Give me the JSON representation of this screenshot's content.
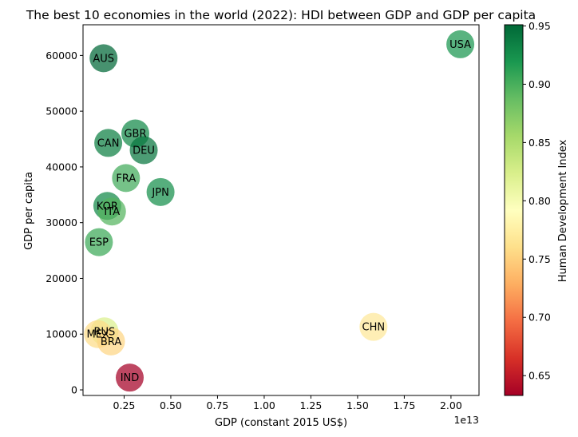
{
  "chart_data": {
    "type": "scatter",
    "title": "The best 10 economies in the world (2022): HDI between GDP and GDP per capita",
    "xlabel": "GDP (constant 2015 US$)",
    "ylabel": "GDP per capita",
    "x_offset_label": "1e13",
    "x_scale": 10000000000000.0,
    "xlim": [
      0.03,
      2.15
    ],
    "ylim": [
      -1000,
      65500
    ],
    "x_ticks": [
      0.25,
      0.5,
      0.75,
      1.0,
      1.25,
      1.5,
      1.75,
      2.0
    ],
    "x_tick_labels": [
      "0.25",
      "0.50",
      "0.75",
      "1.00",
      "1.25",
      "1.50",
      "1.75",
      "2.00"
    ],
    "y_ticks": [
      0,
      10000,
      20000,
      30000,
      40000,
      50000,
      60000
    ],
    "y_tick_labels": [
      "0",
      "10000",
      "20000",
      "30000",
      "40000",
      "50000",
      "60000"
    ],
    "colorbar": {
      "label": "Human Development Index",
      "colormap": "RdYlGn",
      "range": [
        0.633,
        0.951
      ],
      "ticks": [
        0.65,
        0.7,
        0.75,
        0.8,
        0.85,
        0.9,
        0.95
      ],
      "tick_labels": [
        "0.65",
        "0.70",
        "0.75",
        "0.80",
        "0.85",
        "0.90",
        "0.95"
      ]
    },
    "grid": false,
    "points": [
      {
        "label": "USA",
        "x": 2.05,
        "y": 62000,
        "hdi": 0.921
      },
      {
        "label": "AUS",
        "x": 0.14,
        "y": 59500,
        "hdi": 0.951
      },
      {
        "label": "GBR",
        "x": 0.31,
        "y": 46000,
        "hdi": 0.929
      },
      {
        "label": "CAN",
        "x": 0.165,
        "y": 44300,
        "hdi": 0.936
      },
      {
        "label": "DEU",
        "x": 0.355,
        "y": 43000,
        "hdi": 0.942
      },
      {
        "label": "FRA",
        "x": 0.26,
        "y": 38000,
        "hdi": 0.903
      },
      {
        "label": "JPN",
        "x": 0.445,
        "y": 35500,
        "hdi": 0.925
      },
      {
        "label": "KOR",
        "x": 0.16,
        "y": 33000,
        "hdi": 0.929
      },
      {
        "label": "ITA",
        "x": 0.185,
        "y": 32000,
        "hdi": 0.895
      },
      {
        "label": "ESP",
        "x": 0.115,
        "y": 26500,
        "hdi": 0.905
      },
      {
        "label": "RUS",
        "x": 0.145,
        "y": 10500,
        "hdi": 0.822
      },
      {
        "label": "MEX",
        "x": 0.11,
        "y": 10000,
        "hdi": 0.758
      },
      {
        "label": "BRA",
        "x": 0.18,
        "y": 8700,
        "hdi": 0.754
      },
      {
        "label": "CHN",
        "x": 1.585,
        "y": 11300,
        "hdi": 0.768
      },
      {
        "label": "IND",
        "x": 0.28,
        "y": 2200,
        "hdi": 0.633
      }
    ]
  }
}
